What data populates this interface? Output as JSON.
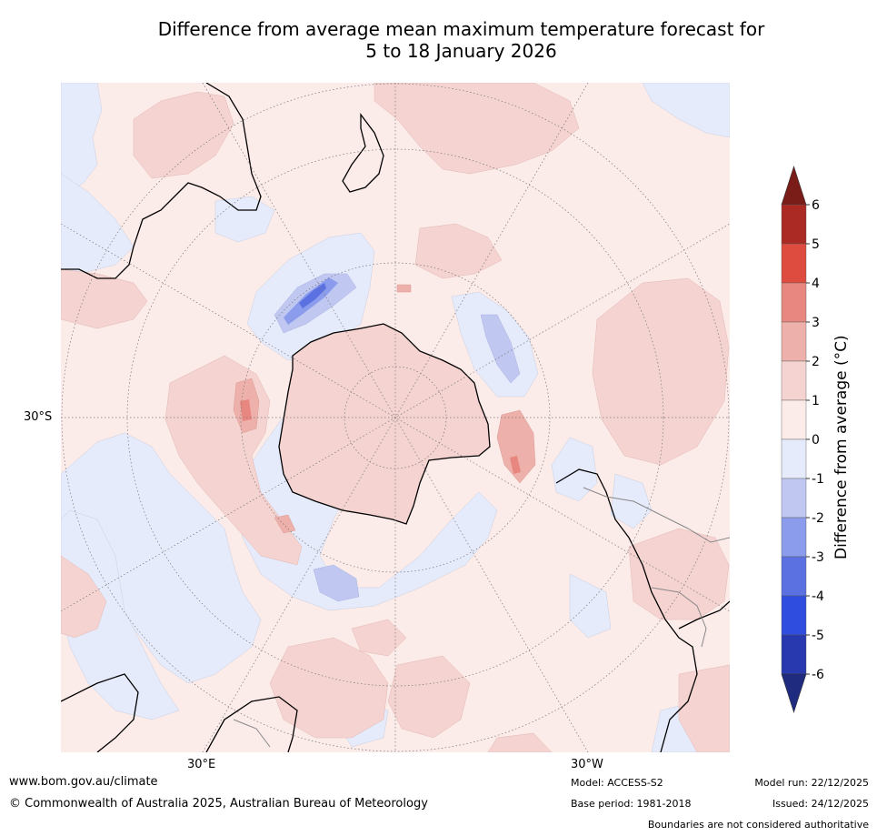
{
  "title": {
    "line1": "Difference from average mean maximum temperature forecast for",
    "line2": "5 to 18 January 2026"
  },
  "map": {
    "projection": "south-polar-stereographic",
    "lat_label": "30°S",
    "lon_labels": {
      "east": "30°E",
      "west": "30°W"
    },
    "colors": {
      "background": "#fbebe9",
      "ocean_outline": "#cccccc"
    }
  },
  "colorbar": {
    "title": "Difference from average (°C)",
    "ticks": [
      "6",
      "5",
      "4",
      "3",
      "2",
      "1",
      "0",
      "-1",
      "-2",
      "-3",
      "-4",
      "-5",
      "-6"
    ],
    "levels": [
      {
        "range": "> 6",
        "color": "#7a1c18"
      },
      {
        "range": "5 to 6",
        "color": "#ab2a23"
      },
      {
        "range": "4 to 5",
        "color": "#de4c40"
      },
      {
        "range": "3 to 4",
        "color": "#e8877f"
      },
      {
        "range": "2 to 3",
        "color": "#eeb0aa"
      },
      {
        "range": "1 to 2",
        "color": "#f4d3d1"
      },
      {
        "range": "0 to 1",
        "color": "#fbebe9"
      },
      {
        "range": "-1 to 0",
        "color": "#e6ebfb"
      },
      {
        "range": "-2 to -1",
        "color": "#c0c8f2"
      },
      {
        "range": "-3 to -2",
        "color": "#8c9cec"
      },
      {
        "range": "-4 to -3",
        "color": "#5b71e2"
      },
      {
        "range": "-5 to -4",
        "color": "#2f4ee0"
      },
      {
        "range": "-6 to -5",
        "color": "#2838ae"
      },
      {
        "range": "< -6",
        "color": "#1e2b7e"
      }
    ]
  },
  "footer": {
    "url": "www.bom.gov.au/climate",
    "copyright": "© Commonwealth of Australia 2025, Australian Bureau of Meteorology",
    "model": "Model: ACCESS-S2",
    "base_period": "Base period: 1981-2018",
    "model_run": "Model run: 22/12/2025",
    "issued": "Issued: 24/12/2025",
    "boundaries_note": "Boundaries are not considered authoritative"
  }
}
